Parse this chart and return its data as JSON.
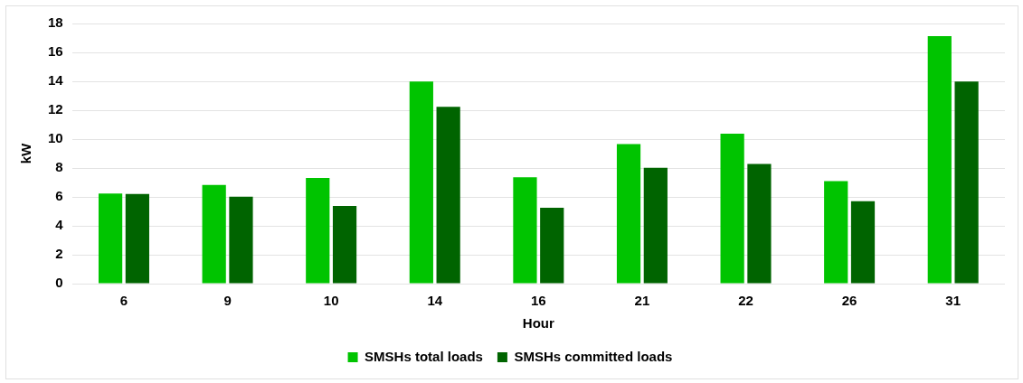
{
  "chart_data": {
    "type": "bar",
    "xlabel": "Hour",
    "ylabel": "kW",
    "categories": [
      "6",
      "9",
      "10",
      "14",
      "16",
      "21",
      "22",
      "26",
      "31"
    ],
    "series": [
      {
        "name": "SMSHs total loads",
        "color": "#00c400",
        "values": [
          6.24,
          6.83,
          7.31,
          13.99,
          7.36,
          9.65,
          10.37,
          7.09,
          17.13
        ]
      },
      {
        "name": "SMSHs committed loads",
        "color": "#006400",
        "values": [
          6.2,
          6.01,
          5.38,
          12.23,
          5.25,
          8.01,
          8.28,
          5.7,
          13.98
        ]
      }
    ],
    "ylim": [
      0,
      18
    ],
    "yticks": [
      0,
      2,
      4,
      6,
      8,
      10,
      12,
      14,
      16,
      18
    ],
    "grid": "y",
    "legend": "bottom"
  }
}
